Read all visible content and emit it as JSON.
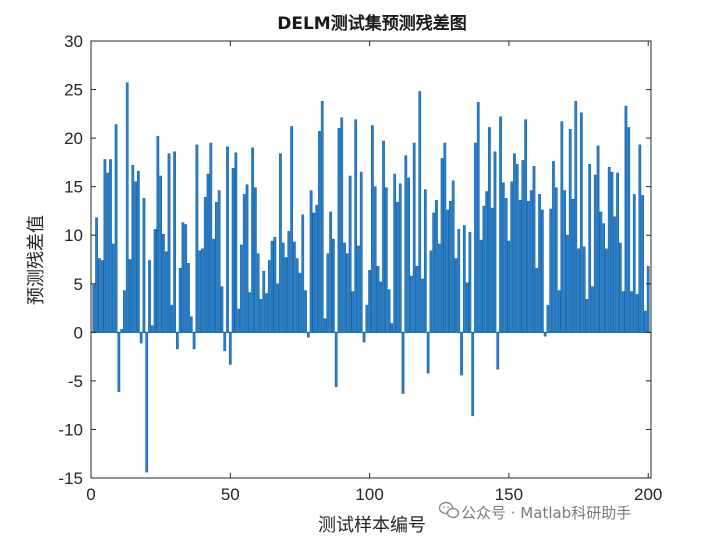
{
  "chart_data": {
    "type": "bar",
    "title": "DELM测试集预测残差图",
    "xlabel": "测试样本编号",
    "ylabel": "预测残差值",
    "xlim": [
      0,
      201
    ],
    "ylim": [
      -15,
      30
    ],
    "xticks": [
      0,
      50,
      100,
      150,
      200
    ],
    "yticks": [
      -15,
      -10,
      -5,
      0,
      5,
      10,
      15,
      20,
      25,
      30
    ],
    "grid": false,
    "bar_color": "#2a7fc8",
    "bar_edge_color": "#0d5fa3",
    "values": [
      4.9,
      11.8,
      7.6,
      7.4,
      17.8,
      16.4,
      17.8,
      9.1,
      21.4,
      -6.1,
      0.3,
      4.3,
      25.7,
      7.5,
      17.2,
      15.5,
      16.6,
      -1.1,
      13.8,
      -14.4,
      7.4,
      0.7,
      10.6,
      20.2,
      16.1,
      10.1,
      8.3,
      18.4,
      2.8,
      18.6,
      -1.7,
      6.6,
      11.3,
      11.1,
      7.1,
      1.6,
      -1.7,
      19.3,
      8.4,
      8.6,
      13.9,
      16.3,
      19.5,
      9.6,
      13.4,
      14.6,
      4.7,
      -1.9,
      19.1,
      -3.3,
      16.9,
      18.5,
      2.4,
      9.0,
      14.2,
      15.2,
      4.1,
      19.0,
      14.9,
      8.1,
      3.4,
      6.3,
      4.0,
      7.4,
      9.4,
      9.8,
      5.0,
      18.4,
      9.2,
      7.7,
      10.4,
      21.2,
      9.3,
      7.6,
      6.1,
      12.1,
      4.3,
      -0.5,
      14.6,
      12.3,
      13.1,
      20.7,
      23.8,
      1.4,
      8.1,
      12.4,
      9.6,
      -5.6,
      21.0,
      22.1,
      9.2,
      8.1,
      16.1,
      4.2,
      21.9,
      8.9,
      16.5,
      -1.0,
      2.8,
      6.4,
      21.3,
      15.0,
      6.8,
      5.2,
      19.7,
      14.9,
      4.4,
      0.9,
      16.3,
      13.4,
      15.3,
      -6.3,
      18.2,
      15.9,
      5.8,
      19.5,
      6.8,
      24.8,
      5.5,
      14.7,
      -4.2,
      8.4,
      12.3,
      13.6,
      9.1,
      17.9,
      19.5,
      12.6,
      13.5,
      15.6,
      7.6,
      10.6,
      -4.4,
      11.0,
      5.1,
      10.3,
      -8.6,
      19.5,
      23.7,
      9.5,
      13.0,
      14.5,
      21.1,
      12.8,
      18.6,
      -3.8,
      22.2,
      15.4,
      13.8,
      9.4,
      15.5,
      18.4,
      17.3,
      13.6,
      17.7,
      21.9,
      13.5,
      14.6,
      17.1,
      6.6,
      14.2,
      12.6,
      -0.4,
      2.8,
      12.7,
      17.6,
      14.9,
      4.3,
      21.7,
      14.6,
      10.0,
      20.9,
      13.7,
      23.8,
      8.6,
      22.6,
      8.8,
      3.4,
      17.3,
      4.7,
      16.2,
      19.2,
      12.4,
      11.2,
      8.6,
      17.0,
      16.5,
      11.9,
      16.4,
      9.2,
      4.2,
      23.3,
      21.1,
      4.2,
      14.2,
      3.9,
      19.3,
      14.1,
      2.2,
      6.8
    ]
  },
  "watermark": "公众号 · Matlab科研助手"
}
